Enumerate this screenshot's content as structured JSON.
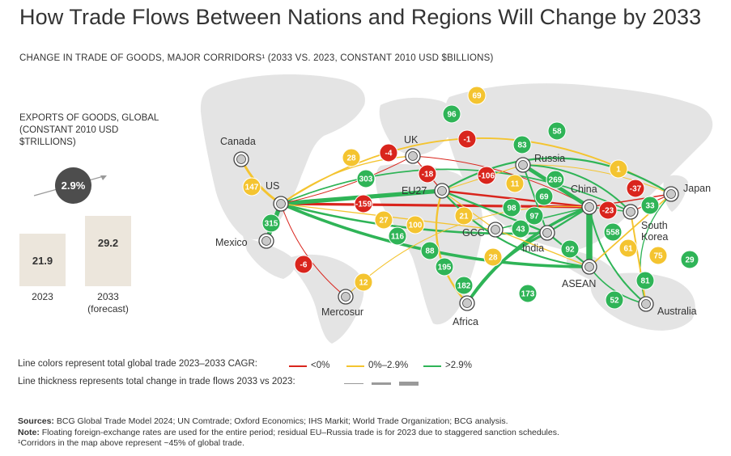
{
  "title": "How Trade Flows Between Nations and Regions Will Change by 2033",
  "subtitle": "CHANGE IN TRADE OF GOODS, MAJOR CORRIDORS¹ (2033 VS. 2023, CONSTANT 2010 USD $BILLIONS)",
  "exports": {
    "label": "EXPORTS OF GOODS, GLOBAL (CONSTANT 2010 USD $TRILLIONS)",
    "cagr": "2.9%",
    "bars": [
      {
        "value": "21.9",
        "label": "2023",
        "amount": 21.9
      },
      {
        "value": "29.2",
        "label": "2033\n(forecast)",
        "amount": 29.2
      }
    ]
  },
  "colors": {
    "negative": "#d9251d",
    "low": "#f4c430",
    "high": "#2fb457",
    "land": "#e3e3e3",
    "node": "#444444"
  },
  "nodes": [
    {
      "id": "canada",
      "name": "Canada"
    },
    {
      "id": "us",
      "name": "US"
    },
    {
      "id": "mexico",
      "name": "Mexico"
    },
    {
      "id": "mercosur",
      "name": "Mercosur"
    },
    {
      "id": "uk",
      "name": "UK"
    },
    {
      "id": "eu27",
      "name": "EU27"
    },
    {
      "id": "russia",
      "name": "Russia"
    },
    {
      "id": "gcc",
      "name": "GCC"
    },
    {
      "id": "africa",
      "name": "Africa"
    },
    {
      "id": "india",
      "name": "India"
    },
    {
      "id": "china",
      "name": "China"
    },
    {
      "id": "japan",
      "name": "Japan"
    },
    {
      "id": "southkorea",
      "name": "South Korea"
    },
    {
      "id": "asean",
      "name": "ASEAN"
    },
    {
      "id": "australia",
      "name": "Australia"
    }
  ],
  "flows": [
    {
      "from": "us",
      "to": "china",
      "value": "-159",
      "cagr": "negative"
    },
    {
      "from": "eu27",
      "to": "china",
      "value": "-106",
      "cagr": "negative"
    },
    {
      "from": "us",
      "to": "eu27",
      "value": "303",
      "cagr": "high"
    },
    {
      "from": "us",
      "to": "mexico",
      "value": "315",
      "cagr": "high"
    },
    {
      "from": "us",
      "to": "canada",
      "value": "147",
      "cagr": "low"
    },
    {
      "from": "us",
      "to": "asean",
      "value": "195",
      "cagr": "high"
    },
    {
      "from": "us",
      "to": "japan",
      "value": "69",
      "cagr": "low"
    },
    {
      "from": "us",
      "to": "india",
      "value": "116",
      "cagr": "high"
    },
    {
      "from": "us",
      "to": "southkorea",
      "value": "58",
      "cagr": "high"
    },
    {
      "from": "us",
      "to": "uk",
      "value": "28",
      "cagr": "low"
    },
    {
      "from": "us",
      "to": "mercosur",
      "value": "-6",
      "cagr": "negative"
    },
    {
      "from": "us",
      "to": "gcc",
      "value": "27",
      "cagr": "low"
    },
    {
      "from": "uk",
      "to": "eu27",
      "value": "-18",
      "cagr": "negative"
    },
    {
      "from": "uk",
      "to": "china",
      "value": "-1",
      "cagr": "negative"
    },
    {
      "from": "uk",
      "to": "us",
      "value": "-4",
      "cagr": "negative"
    },
    {
      "from": "eu27",
      "to": "asean",
      "value": "88",
      "cagr": "high"
    },
    {
      "from": "eu27",
      "to": "india",
      "value": "98",
      "cagr": "high"
    },
    {
      "from": "eu27",
      "to": "gcc",
      "value": "21",
      "cagr": "low"
    },
    {
      "from": "eu27",
      "to": "africa",
      "value": "100",
      "cagr": "low"
    },
    {
      "from": "eu27",
      "to": "russia",
      "value": "11",
      "cagr": "low"
    },
    {
      "from": "eu27",
      "to": "japan",
      "value": "96",
      "cagr": "high"
    },
    {
      "from": "russia",
      "to": "china",
      "value": "269",
      "cagr": "high"
    },
    {
      "from": "russia",
      "to": "india",
      "value": "69",
      "cagr": "high"
    },
    {
      "from": "russia",
      "to": "japan",
      "value": "1",
      "cagr": "low"
    },
    {
      "from": "russia",
      "to": "southkorea",
      "value": "83",
      "cagr": "high"
    },
    {
      "from": "china",
      "to": "india",
      "value": "97",
      "cagr": "high"
    },
    {
      "from": "china",
      "to": "gcc",
      "value": "43",
      "cagr": "high"
    },
    {
      "from": "china",
      "to": "japan",
      "value": "-37",
      "cagr": "negative"
    },
    {
      "from": "china",
      "to": "southkorea",
      "value": "33",
      "cagr": "high"
    },
    {
      "from": "china",
      "to": "asean",
      "value": "558",
      "cagr": "high"
    },
    {
      "from": "china",
      "to": "africa",
      "value": "182",
      "cagr": "high"
    },
    {
      "from": "china",
      "to": "australia",
      "value": "81",
      "cagr": "high"
    },
    {
      "from": "china",
      "to": "mercosur",
      "value": "12",
      "cagr": "low"
    },
    {
      "from": "japan",
      "to": "southkorea",
      "value": "-23",
      "cagr": "negative"
    },
    {
      "from": "japan",
      "to": "asean",
      "value": "61",
      "cagr": "low"
    },
    {
      "from": "japan",
      "to": "australia",
      "value": "29",
      "cagr": "high"
    },
    {
      "from": "southkorea",
      "to": "australia",
      "value": "75",
      "cagr": "low"
    },
    {
      "from": "india",
      "to": "asean",
      "value": "92",
      "cagr": "high"
    },
    {
      "from": "india",
      "to": "africa",
      "value": "173",
      "cagr": "high"
    },
    {
      "from": "asean",
      "to": "australia",
      "value": "52",
      "cagr": "high"
    },
    {
      "from": "gcc",
      "to": "asean",
      "value": "28",
      "cagr": "low"
    }
  ],
  "legend": {
    "colors_label": "Line colors represent total global trade 2023–2033 CAGR:",
    "items": [
      {
        "label": "<0%",
        "cagr": "negative"
      },
      {
        "label": "0%–2.9%",
        "cagr": "low"
      },
      {
        "label": ">2.9%",
        "cagr": "high"
      }
    ],
    "thickness_label": "Line thickness represents total change in trade flows 2033 vs 2023:"
  },
  "footer": {
    "sources_label": "Sources:",
    "sources": "BCG Global Trade Model 2024; UN Comtrade; Oxford Economics; IHS Markit; World Trade Organization; BCG analysis.",
    "note_label": "Note:",
    "note": "Floating foreign-exchange rates are used for the entire period; residual EU–Russia trade is for 2023 due to staggered sanction schedules.",
    "footnote": "¹Corridors in the map above represent ~45% of global trade."
  }
}
